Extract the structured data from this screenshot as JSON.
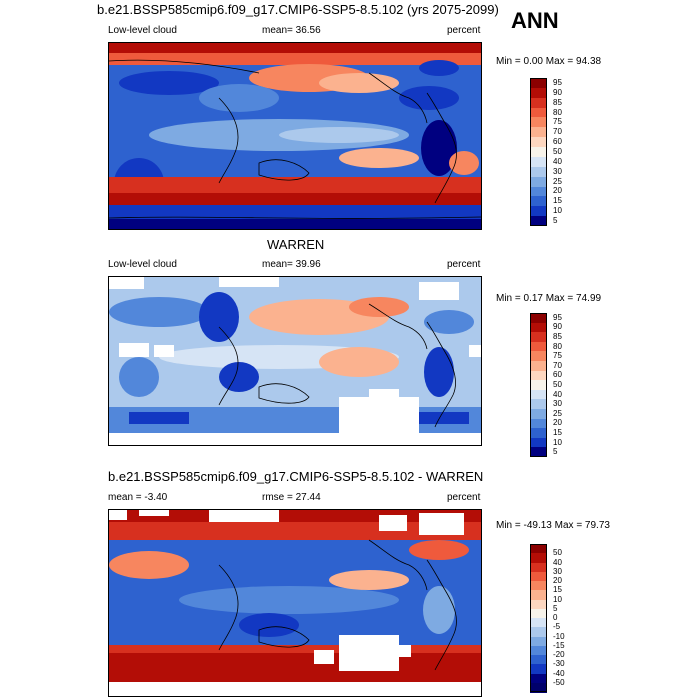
{
  "season": "ANN",
  "panels": [
    {
      "title": "b.e21.BSSP585cmip6.f09_g17.CMIP6-SSP5-8.5.102 (yrs 2075-2099)",
      "left_label": "Low-level cloud",
      "center_label": "mean=  36.56",
      "right_label": "percent",
      "stats": "Min =   0.00 Max =  94.38",
      "colorbar_labels": [
        "95",
        "90",
        "85",
        "80",
        "75",
        "70",
        "60",
        "50",
        "40",
        "30",
        "25",
        "20",
        "15",
        "10",
        "5"
      ],
      "colorbar_colors": [
        "#8b0000",
        "#b30d06",
        "#d7301f",
        "#ef5a3c",
        "#f7865f",
        "#fbb28f",
        "#fdd7c0",
        "#f7f3ea",
        "#d6e4f5",
        "#acc9ec",
        "#7eaae2",
        "#5287da",
        "#2e62cf",
        "#1238c2",
        "#000080"
      ]
    },
    {
      "title": "WARREN",
      "left_label": "Low-level cloud",
      "center_label": "mean=  39.96",
      "right_label": "percent",
      "stats": "Min =   0.17 Max =  74.99",
      "colorbar_labels": [
        "95",
        "90",
        "85",
        "80",
        "75",
        "70",
        "60",
        "50",
        "40",
        "30",
        "25",
        "20",
        "15",
        "10",
        "5"
      ],
      "colorbar_colors": [
        "#8b0000",
        "#b30d06",
        "#d7301f",
        "#ef5a3c",
        "#f7865f",
        "#fbb28f",
        "#fdd7c0",
        "#f7f3ea",
        "#d6e4f5",
        "#acc9ec",
        "#7eaae2",
        "#5287da",
        "#2e62cf",
        "#1238c2",
        "#000080"
      ]
    },
    {
      "title": "b.e21.BSSP585cmip6.f09_g17.CMIP6-SSP5-8.5.102 - WARREN",
      "left_label": "mean =  -3.40",
      "center_label": "rmse =  27.44",
      "right_label": "percent",
      "stats": "Min = -49.13 Max =  79.73",
      "colorbar_labels": [
        "50",
        "40",
        "30",
        "20",
        "15",
        "10",
        "5",
        "0",
        "-5",
        "-10",
        "-15",
        "-20",
        "-30",
        "-40",
        "-50"
      ],
      "colorbar_colors": [
        "#8b0000",
        "#b30d06",
        "#d7301f",
        "#ef5a3c",
        "#f7865f",
        "#fbb28f",
        "#fdd7c0",
        "#f7f3ea",
        "#d6e4f5",
        "#acc9ec",
        "#7eaae2",
        "#5287da",
        "#2e62cf",
        "#1238c2",
        "#000080",
        "#00006b"
      ]
    }
  ]
}
